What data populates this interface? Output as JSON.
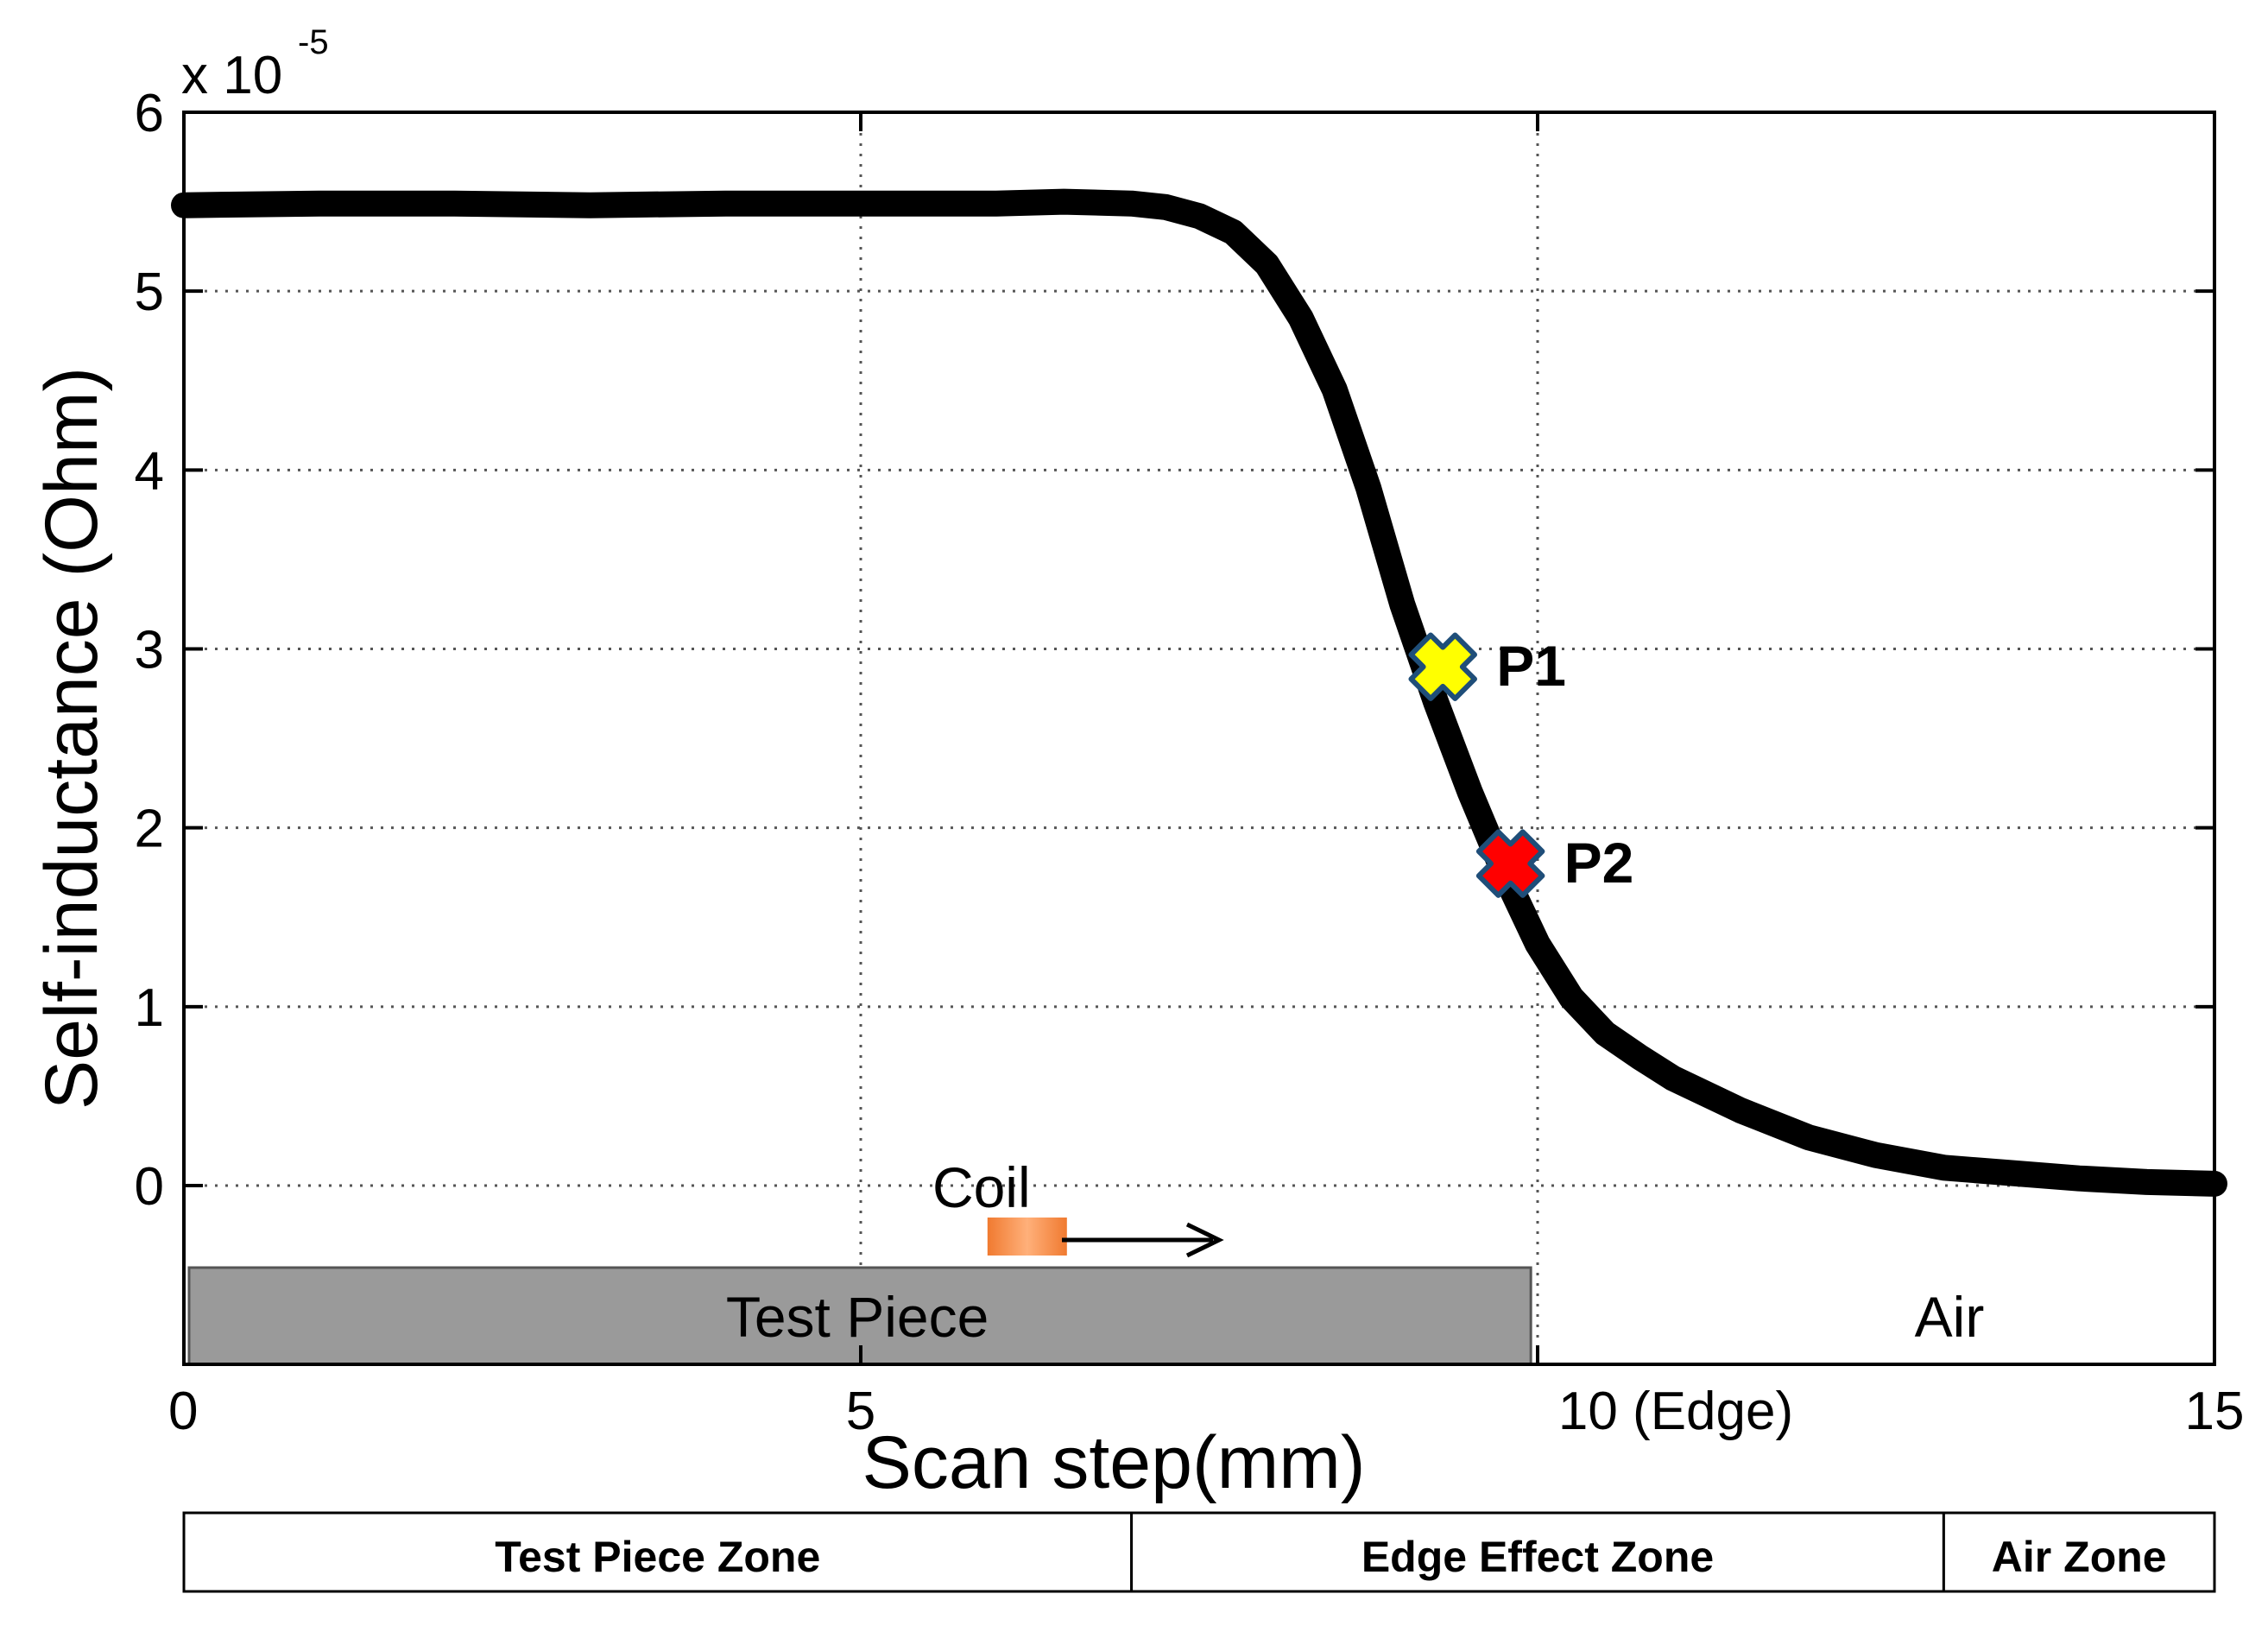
{
  "chart_data": {
    "type": "line",
    "title": "",
    "xlabel": "Scan step(mm)",
    "ylabel": "Self-inductance (Ohm)",
    "y_scale_label": "x 10",
    "y_scale_exponent": "-5",
    "xlim": [
      0,
      15
    ],
    "ylim": [
      0,
      6
    ],
    "xticks": [
      0,
      5,
      10,
      15
    ],
    "xtick_labels": [
      "0",
      "5",
      "10 (Edge)",
      "15"
    ],
    "yticks": [
      0,
      1,
      2,
      3,
      4,
      5,
      6
    ],
    "ytick_labels": [
      "0",
      "1",
      "2",
      "3",
      "4",
      "5",
      "6"
    ],
    "grid": true,
    "series": [
      {
        "x": [
          0,
          1,
          2,
          3,
          4,
          5,
          6,
          6.5,
          7,
          7.25,
          7.5,
          7.75,
          8,
          8.25,
          8.5,
          8.75,
          9,
          9.25,
          9.5,
          9.75,
          10,
          10.25,
          10.5,
          10.75,
          11,
          11.5,
          12,
          12.5,
          13,
          13.5,
          14,
          14.5,
          15
        ],
        "y": [
          5.48,
          5.49,
          5.49,
          5.48,
          5.49,
          5.49,
          5.49,
          5.5,
          5.49,
          5.47,
          5.42,
          5.33,
          5.15,
          4.85,
          4.45,
          3.9,
          3.25,
          2.7,
          2.2,
          1.75,
          1.35,
          1.05,
          0.85,
          0.72,
          0.6,
          0.42,
          0.27,
          0.17,
          0.1,
          0.07,
          0.04,
          0.02,
          0.01
        ],
        "color": "#000000"
      }
    ],
    "points": [
      {
        "label": "P1",
        "x": 9.3,
        "y": 2.9,
        "color": "#ffff00"
      },
      {
        "label": "P2",
        "x": 9.8,
        "y": 1.8,
        "color": "#ff0000"
      }
    ],
    "annotations": {
      "coil_label": "Coil",
      "test_piece_label": "Test Piece",
      "air_label": "Air",
      "test_piece_range": [
        0,
        9.95
      ],
      "coil_x": 6.0
    },
    "zones": [
      {
        "label": "Test Piece Zone",
        "x0": 0,
        "x1": 7.0
      },
      {
        "label": "Edge Effect Zone",
        "x0": 7.0,
        "x1": 13.0
      },
      {
        "label": "Air Zone",
        "x0": 13.0,
        "x1": 15
      }
    ],
    "colors": {
      "test_piece": "#9a9a9a",
      "coil": "#f08040",
      "grid": "#555555"
    }
  }
}
